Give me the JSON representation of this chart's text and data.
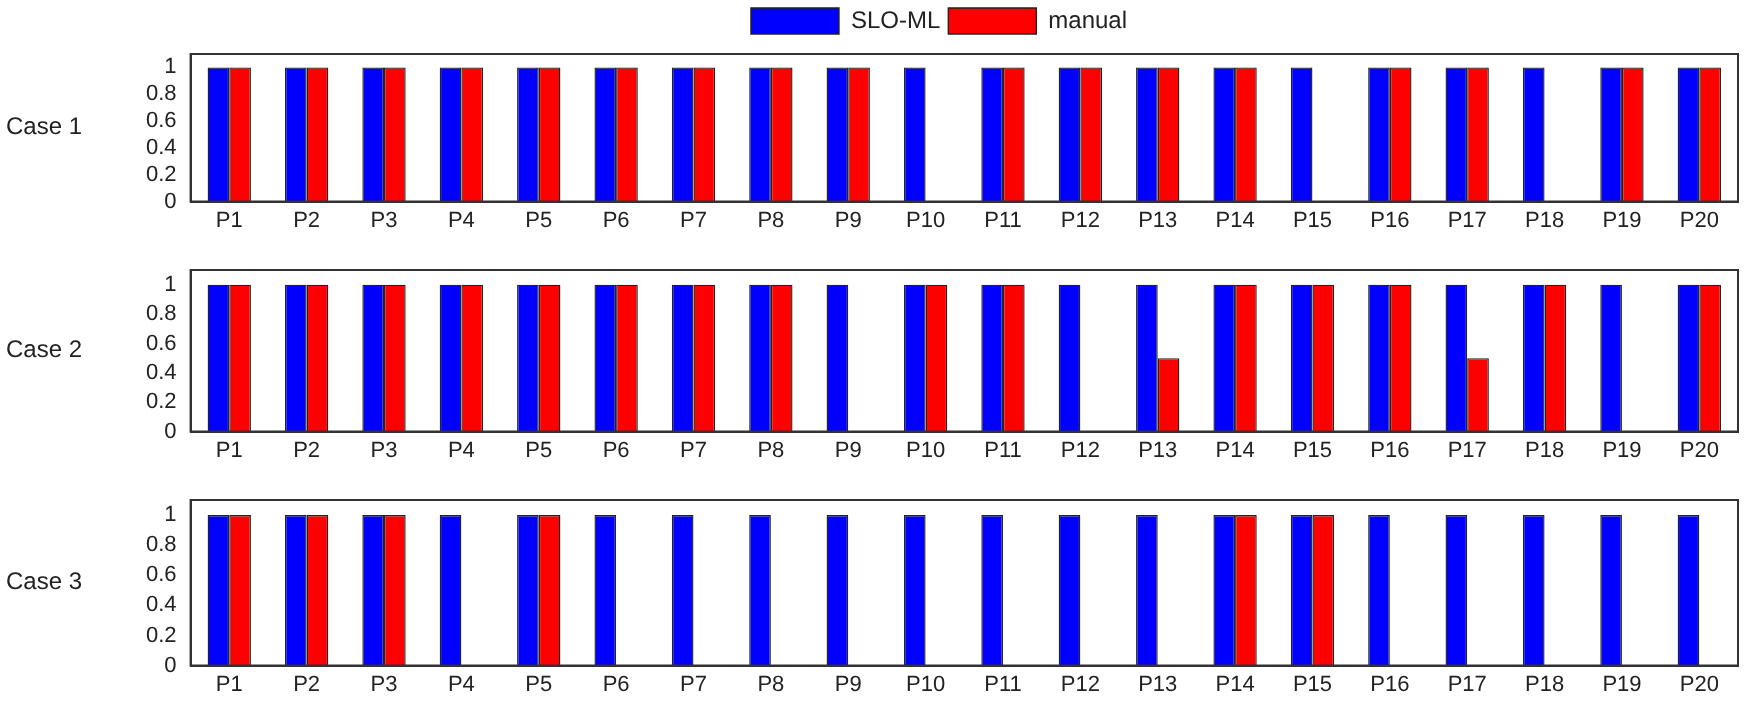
{
  "chart_data": [
    {
      "type": "bar",
      "ylabel": "Case 1",
      "categories": [
        "P1",
        "P2",
        "P3",
        "P4",
        "P5",
        "P6",
        "P7",
        "P8",
        "P9",
        "P10",
        "P11",
        "P12",
        "P13",
        "P14",
        "P15",
        "P16",
        "P17",
        "P18",
        "P19",
        "P20"
      ],
      "series": [
        {
          "name": "SLO-ML",
          "color": "#0000ff",
          "values": [
            1,
            1,
            1,
            1,
            1,
            1,
            1,
            1,
            1,
            1,
            1,
            1,
            1,
            1,
            1,
            1,
            1,
            1,
            1,
            1
          ]
        },
        {
          "name": "manual",
          "color": "#ff0000",
          "values": [
            1,
            1,
            1,
            1,
            1,
            1,
            1,
            1,
            1,
            0,
            1,
            1,
            1,
            1,
            0,
            1,
            1,
            0,
            1,
            1
          ]
        }
      ],
      "ylim": [
        0,
        1.1
      ],
      "yticks": [
        0,
        0.2,
        0.4,
        0.6,
        0.8,
        1
      ],
      "grid": false,
      "legend": "top"
    },
    {
      "type": "bar",
      "ylabel": "Case 2",
      "categories": [
        "P1",
        "P2",
        "P3",
        "P4",
        "P5",
        "P6",
        "P7",
        "P8",
        "P9",
        "P10",
        "P11",
        "P12",
        "P13",
        "P14",
        "P15",
        "P16",
        "P17",
        "P18",
        "P19",
        "P20"
      ],
      "series": [
        {
          "color": "#0000ff",
          "values": [
            1,
            1,
            1,
            1,
            1,
            1,
            1,
            1,
            1,
            1,
            1,
            1,
            1,
            1,
            1,
            1,
            1,
            1,
            1,
            1
          ]
        },
        {
          "color": "#ff0000",
          "values": [
            1,
            1,
            1,
            1,
            1,
            1,
            1,
            1,
            0,
            1,
            1,
            0,
            0.5,
            1,
            1,
            1,
            0.5,
            1,
            0,
            1
          ]
        }
      ],
      "ylim": [
        0,
        1.1
      ],
      "yticks": [
        0,
        0.2,
        0.4,
        0.6,
        0.8,
        1
      ],
      "grid": false
    },
    {
      "type": "bar",
      "ylabel": "Case 3",
      "categories": [
        "P1",
        "P2",
        "P3",
        "P4",
        "P5",
        "P6",
        "P7",
        "P8",
        "P9",
        "P10",
        "P11",
        "P12",
        "P13",
        "P14",
        "P15",
        "P16",
        "P17",
        "P18",
        "P19",
        "P20"
      ],
      "series": [
        {
          "color": "#0000ff",
          "values": [
            1,
            1,
            1,
            1,
            1,
            1,
            1,
            1,
            1,
            1,
            1,
            1,
            1,
            1,
            1,
            1,
            1,
            1,
            1,
            1
          ]
        },
        {
          "color": "#ff0000",
          "values": [
            1,
            1,
            1,
            0,
            1,
            0,
            0,
            0,
            0,
            0,
            0,
            0,
            0,
            1,
            1,
            0,
            0,
            0,
            0,
            0
          ]
        }
      ],
      "ylim": [
        0,
        1.1
      ],
      "yticks": [
        0,
        0.2,
        0.4,
        0.6,
        0.8,
        1
      ],
      "grid": false
    }
  ]
}
